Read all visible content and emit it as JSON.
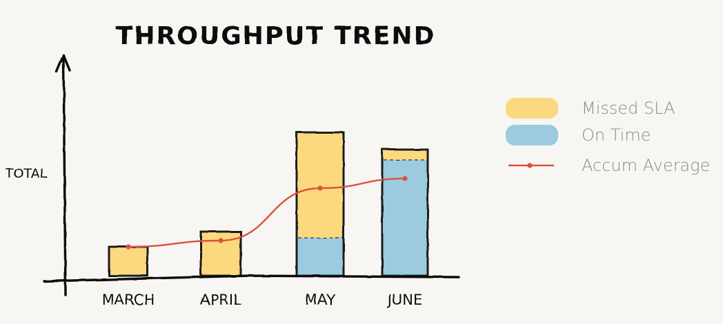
{
  "chart_data": {
    "type": "bar",
    "stacked": true,
    "title": "THROUGHPUT TREND",
    "ylabel": "TOTAL",
    "xlabel": "",
    "categories": [
      "MARCH",
      "APRIL",
      "MAY",
      "JUNE"
    ],
    "ylim": [
      0,
      210
    ],
    "grid": false,
    "legend_position": "right",
    "series": [
      {
        "name": "On Time",
        "type": "bar",
        "color": "#9ccbe0",
        "values": [
          0,
          0,
          55,
          168
        ]
      },
      {
        "name": "Missed SLA",
        "type": "bar",
        "color": "#fcd87e",
        "values": [
          42,
          64,
          153,
          15
        ]
      },
      {
        "name": "Accum Average",
        "type": "line",
        "color": "#d9523f",
        "values": [
          42,
          51,
          127,
          141
        ]
      }
    ]
  }
}
